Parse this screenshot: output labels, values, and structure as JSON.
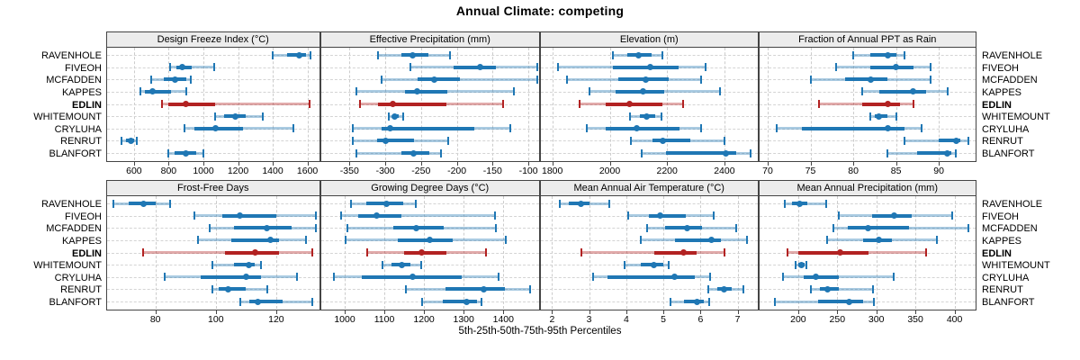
{
  "title": "Annual Climate: competing",
  "caption": "5th-25th-50th-75th-95th Percentiles",
  "colors": {
    "series_blue": "#1f77b4",
    "highlight_red": "#b22222",
    "strip_bg": "#ececec",
    "panel_border": "#444444",
    "gridline": "#cccccc"
  },
  "chart_data": {
    "type": "dotplot-trellis",
    "layout": {
      "rows": 2,
      "cols": 4,
      "grid": "dashed",
      "labels_both_sides": true
    },
    "percentiles": [
      5,
      25,
      50,
      75,
      95
    ],
    "sites": [
      "RAVENHOLE",
      "FIVEOH",
      "MCFADDEN",
      "KAPPES",
      "EDLIN",
      "WHITEMOUNT",
      "CRYLUHA",
      "RENRUT",
      "BLANFORT"
    ],
    "highlight_site": "EDLIN",
    "panels": [
      {
        "title": "Design Freeze Index (°C)",
        "row": 0,
        "col": 0,
        "xlim": [
          445,
          1667
        ],
        "ticks": [
          600,
          800,
          1000,
          1200,
          1400,
          1600
        ],
        "values": {
          "RAVENHOLE": [
            1400,
            1480,
            1555,
            1590,
            1620
          ],
          "FIVEOH": [
            810,
            845,
            880,
            935,
            1060
          ],
          "MCFADDEN": [
            700,
            770,
            835,
            900,
            925
          ],
          "KAPPES": [
            635,
            665,
            705,
            815,
            900
          ],
          "EDLIN": [
            760,
            800,
            900,
            1070,
            1610
          ],
          "WHITEMOUNT": [
            1070,
            1120,
            1185,
            1245,
            1340
          ],
          "CRYLUHA": [
            890,
            950,
            1070,
            1230,
            1520
          ],
          "RENRUT": [
            530,
            555,
            580,
            600,
            615
          ],
          "BLANFORT": [
            800,
            835,
            900,
            960,
            1000
          ]
        }
      },
      {
        "title": "Effective Precipitation (mm)",
        "row": 0,
        "col": 1,
        "xlim": [
          -390,
          -85
        ],
        "ticks": [
          -350,
          -300,
          -250,
          -200,
          -150,
          -100
        ],
        "values": {
          "RAVENHOLE": [
            -310,
            -278,
            -262,
            -240,
            -210
          ],
          "FIVEOH": [
            -265,
            -205,
            -168,
            -145,
            -88
          ],
          "MCFADDEN": [
            -305,
            -255,
            -232,
            -195,
            -87
          ],
          "KAPPES": [
            -340,
            -272,
            -255,
            -213,
            -120
          ],
          "EDLIN": [
            -335,
            -310,
            -290,
            -215,
            -135
          ],
          "WHITEMOUNT": [
            -295,
            -290,
            -287,
            -281,
            -275
          ],
          "CRYLUHA": [
            -345,
            -305,
            -293,
            -175,
            -125
          ],
          "RENRUT": [
            -345,
            -312,
            -300,
            -260,
            -212
          ],
          "BLANFORT": [
            -340,
            -278,
            -260,
            -238,
            -222
          ]
        }
      },
      {
        "title": "Elevation (m)",
        "row": 0,
        "col": 2,
        "xlim": [
          1760,
          2515
        ],
        "ticks": [
          1800,
          2000,
          2200,
          2400
        ],
        "values": {
          "RAVENHOLE": [
            2010,
            2060,
            2100,
            2145,
            2185
          ],
          "FIVEOH": [
            1820,
            2010,
            2140,
            2240,
            2335
          ],
          "MCFADDEN": [
            1850,
            2030,
            2125,
            2205,
            2320
          ],
          "KAPPES": [
            1930,
            2020,
            2115,
            2190,
            2385
          ],
          "EDLIN": [
            1895,
            1985,
            2070,
            2185,
            2255
          ],
          "WHITEMOUNT": [
            2070,
            2105,
            2130,
            2160,
            2180
          ],
          "CRYLUHA": [
            1920,
            1985,
            2095,
            2245,
            2320
          ],
          "RENRUT": [
            2075,
            2150,
            2185,
            2280,
            2400
          ],
          "BLANFORT": [
            2110,
            2195,
            2405,
            2440,
            2490
          ]
        }
      },
      {
        "title": "Fraction of Annual PPT as Rain",
        "row": 0,
        "col": 3,
        "xlim": [
          69,
          94.3
        ],
        "ticks": [
          70,
          75,
          80,
          85,
          90
        ],
        "values": {
          "RAVENHOLE": [
            80,
            82,
            84,
            85,
            86
          ],
          "FIVEOH": [
            78,
            82,
            85,
            87,
            89
          ],
          "MCFADDEN": [
            75,
            79,
            82,
            84,
            89
          ],
          "KAPPES": [
            81,
            83,
            87,
            88.5,
            91
          ],
          "EDLIN": [
            76,
            81,
            84,
            85.5,
            87
          ],
          "WHITEMOUNT": [
            82,
            82.5,
            83,
            84,
            85
          ],
          "CRYLUHA": [
            71,
            74,
            84,
            86,
            88
          ],
          "RENRUT": [
            86,
            90,
            92,
            92.5,
            93.5
          ],
          "BLANFORT": [
            84,
            87.5,
            91,
            91.5,
            92
          ]
        }
      },
      {
        "title": "Frost-Free Days",
        "row": 1,
        "col": 0,
        "xlim": [
          64,
          134.2
        ],
        "ticks": [
          80,
          100,
          120
        ],
        "values": {
          "RAVENHOLE": [
            66,
            71,
            76,
            80,
            85
          ],
          "FIVEOH": [
            93,
            102,
            108,
            120,
            133
          ],
          "MCFADDEN": [
            98,
            106,
            117,
            125,
            133
          ],
          "KAPPES": [
            94,
            105,
            118,
            121,
            130
          ],
          "EDLIN": [
            76,
            103,
            113,
            121,
            132
          ],
          "WHITEMOUNT": [
            99,
            106,
            111,
            113,
            115
          ],
          "CRYLUHA": [
            83,
            95,
            110,
            115,
            127
          ],
          "RENRUT": [
            99,
            101,
            104,
            110,
            117
          ],
          "BLANFORT": [
            108,
            111,
            114,
            122,
            132
          ]
        }
      },
      {
        "title": "Growing Degree Days (°C)",
        "row": 1,
        "col": 1,
        "xlim": [
          940,
          1490
        ],
        "ticks": [
          1000,
          1100,
          1200,
          1300,
          1400
        ],
        "values": {
          "RAVENHOLE": [
            1015,
            1055,
            1105,
            1148,
            1180
          ],
          "FIVEOH": [
            990,
            1035,
            1080,
            1142,
            1378
          ],
          "MCFADDEN": [
            1007,
            1122,
            1180,
            1249,
            1380
          ],
          "KAPPES": [
            1003,
            1134,
            1215,
            1272,
            1405
          ],
          "EDLIN": [
            1057,
            1149,
            1193,
            1257,
            1357
          ],
          "WHITEMOUNT": [
            1095,
            1118,
            1143,
            1165,
            1193
          ],
          "CRYLUHA": [
            972,
            1042,
            1172,
            1295,
            1388
          ],
          "RENRUT": [
            1155,
            1255,
            1350,
            1405,
            1468
          ],
          "BLANFORT": [
            1195,
            1247,
            1307,
            1333,
            1345
          ]
        }
      },
      {
        "title": "Mean Annual Air Temperature (°C)",
        "row": 1,
        "col": 2,
        "xlim": [
          1.7,
          7.53
        ],
        "ticks": [
          2,
          3,
          4,
          5,
          6,
          7
        ],
        "values": {
          "RAVENHOLE": [
            2.2,
            2.45,
            2.78,
            3.0,
            3.55
          ],
          "FIVEOH": [
            4.05,
            4.6,
            4.9,
            5.6,
            6.35
          ],
          "MCFADDEN": [
            4.55,
            5.05,
            5.65,
            6.05,
            6.95
          ],
          "KAPPES": [
            4.4,
            5.3,
            6.3,
            6.55,
            7.25
          ],
          "EDLIN": [
            2.8,
            4.75,
            5.55,
            5.9,
            6.65
          ],
          "WHITEMOUNT": [
            3.95,
            4.4,
            4.75,
            5.0,
            5.15
          ],
          "CRYLUHA": [
            3.1,
            3.5,
            5.3,
            5.85,
            6.25
          ],
          "RENRUT": [
            6.2,
            6.45,
            6.62,
            6.85,
            7.15
          ],
          "BLANFORT": [
            5.2,
            5.55,
            5.9,
            6.1,
            6.22
          ]
        }
      },
      {
        "title": "Mean Annual Precipitation (mm)",
        "row": 1,
        "col": 3,
        "xlim": [
          150,
          427
        ],
        "ticks": [
          200,
          250,
          300,
          350,
          400
        ],
        "values": {
          "RAVENHOLE": [
            183,
            192,
            202,
            212,
            236
          ],
          "FIVEOH": [
            252,
            295,
            323,
            345,
            397
          ],
          "MCFADDEN": [
            245,
            263,
            289,
            342,
            418
          ],
          "KAPPES": [
            237,
            283,
            303,
            320,
            377
          ],
          "EDLIN": [
            186,
            200,
            254,
            290,
            364
          ],
          "WHITEMOUNT": [
            197,
            200,
            204,
            208,
            210
          ],
          "CRYLUHA": [
            180,
            207,
            222,
            252,
            322
          ],
          "RENRUT": [
            216,
            228,
            238,
            252,
            296
          ],
          "BLANFORT": [
            170,
            225,
            265,
            283,
            297
          ]
        }
      }
    ]
  }
}
